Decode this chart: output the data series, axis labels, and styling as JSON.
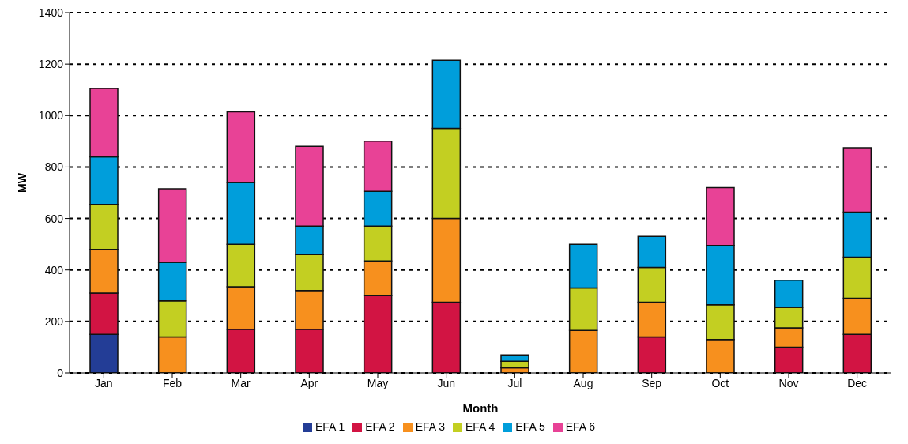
{
  "chart_data": {
    "type": "bar",
    "stacked": true,
    "xlabel": "Month",
    "ylabel": "MW",
    "categories": [
      "Jan",
      "Feb",
      "Mar",
      "Apr",
      "May",
      "Jun",
      "Jul",
      "Aug",
      "Sep",
      "Oct",
      "Nov",
      "Dec"
    ],
    "series": [
      {
        "name": "EFA 1",
        "color": "#233d96",
        "values": [
          150,
          null,
          null,
          null,
          null,
          null,
          null,
          null,
          null,
          null,
          null,
          null
        ]
      },
      {
        "name": "EFA 2",
        "color": "#d21443",
        "values": [
          160,
          null,
          170,
          170,
          300,
          275,
          null,
          null,
          140,
          null,
          100,
          150
        ]
      },
      {
        "name": "EFA 3",
        "color": "#f7901e",
        "values": [
          170,
          140,
          165,
          150,
          135,
          325,
          20,
          165,
          135,
          130,
          75,
          140
        ]
      },
      {
        "name": "EFA 4",
        "color": "#c3cf22",
        "values": [
          175,
          140,
          165,
          140,
          135,
          350,
          25,
          165,
          135,
          135,
          80,
          160
        ]
      },
      {
        "name": "EFA 5",
        "color": "#009edb",
        "values": [
          185,
          150,
          240,
          110,
          135,
          265,
          25,
          170,
          120,
          230,
          105,
          175
        ]
      },
      {
        "name": "EFA 6",
        "color": "#e84296",
        "values": [
          265,
          285,
          275,
          310,
          195,
          null,
          null,
          null,
          null,
          225,
          null,
          250
        ]
      }
    ],
    "ylim": [
      0,
      1400
    ],
    "yticks": [
      0,
      200,
      400,
      600,
      800,
      1000,
      1200,
      1400
    ],
    "grid": "y",
    "legend": "bottom"
  }
}
